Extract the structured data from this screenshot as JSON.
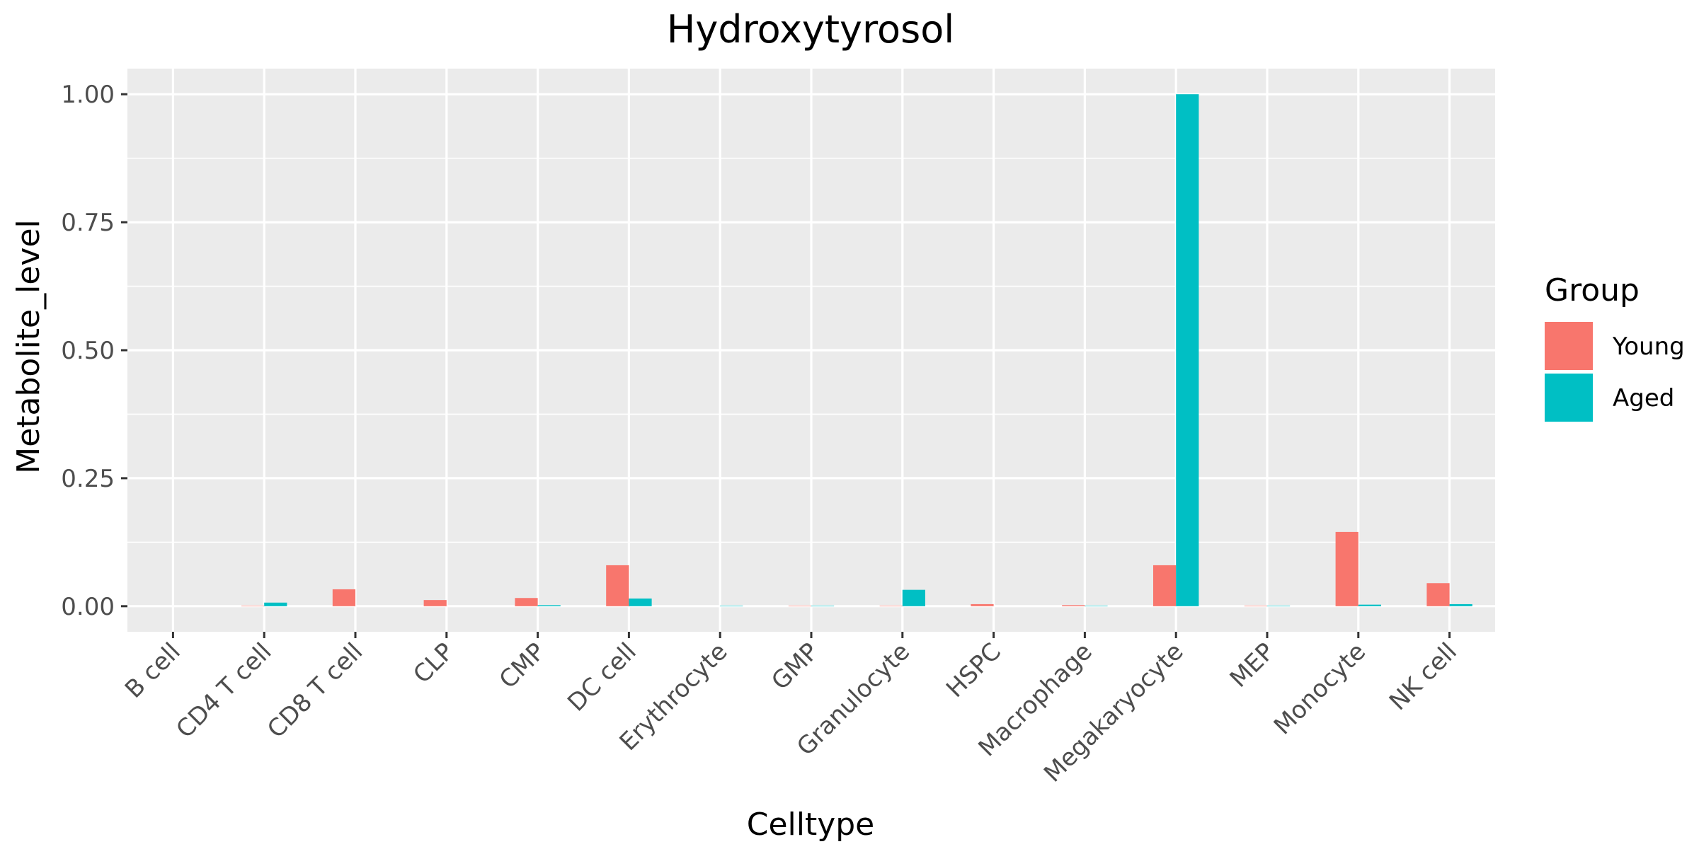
{
  "chart_data": {
    "type": "bar",
    "title": "Hydroxytyrosol",
    "xlabel": "Celltype",
    "ylabel": "Metabolite_level",
    "ylim": [
      -0.05,
      1.05
    ],
    "yticks": [
      0.0,
      0.25,
      0.5,
      0.75,
      1.0
    ],
    "ytick_labels": [
      "0.00",
      "0.25",
      "0.50",
      "0.75",
      "1.00"
    ],
    "grid": true,
    "legend_position": "right",
    "categories": [
      "B cell",
      "CD4 T cell",
      "CD8 T cell",
      "CLP",
      "CMP",
      "DC cell",
      "Erythrocyte",
      "GMP",
      "Granulocyte",
      "HSPC",
      "Macrophage",
      "Megakaryocyte",
      "MEP",
      "Monocyte",
      "NK cell"
    ],
    "legend_title": "Group",
    "series": [
      {
        "name": "Young",
        "color": "#F8766D",
        "values": [
          0.0,
          0.001,
          0.033,
          0.012,
          0.016,
          0.08,
          0.0,
          0.001,
          0.001,
          0.004,
          0.002,
          0.08,
          0.001,
          0.145,
          0.045
        ]
      },
      {
        "name": "Aged",
        "color": "#00BFC4",
        "values": [
          0.0,
          0.007,
          0.0,
          0.0,
          0.002,
          0.015,
          0.001,
          0.001,
          0.032,
          0.0,
          0.001,
          1.0,
          0.001,
          0.003,
          0.004
        ]
      }
    ]
  }
}
